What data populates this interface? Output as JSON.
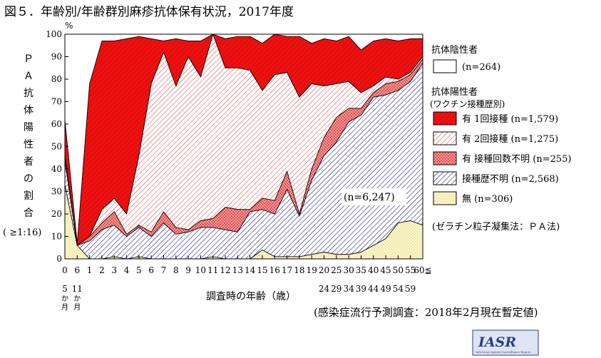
{
  "title": "図５．年齢別/年齢群別麻疹抗体保有状況，2017年度",
  "y_unit": "%",
  "y_axis_label_chars": [
    "Ｐ",
    "Ａ",
    "抗",
    "体",
    "陽",
    "性",
    "者",
    "の",
    "割",
    "合"
  ],
  "y_axis_label_note": "( ≥1:16)",
  "x_axis_title": "調査時の年齢（歳）",
  "sample_size": "(n=6,247)",
  "legend": {
    "negative_header": "抗体陰性者",
    "positive_header": "抗体陽性者",
    "positive_subheader": "(ワクチン接種歴別)",
    "method_note": "(ゼラチン粒子凝集法：ＰＡ法)",
    "items": [
      {
        "key": "negative",
        "label": "(n=264)",
        "color": "#ffffff"
      },
      {
        "key": "dose1",
        "label": "有  1回接種 (n=1,579)",
        "color": "#ee1111"
      },
      {
        "key": "dose2",
        "label": "有  2回接種 (n=1,275)",
        "color": "#ffffff"
      },
      {
        "key": "dose_unknown",
        "label": "有  接種回数不明 (n=255)",
        "color": "#e85555"
      },
      {
        "key": "history_unknown",
        "label": "接種歴不明 (n=2,568)",
        "color": "#3333aa"
      },
      {
        "key": "none",
        "label": "無 (n=306)",
        "color": "#fdf8c8"
      }
    ]
  },
  "source": "(感染症流行予測調査：2018年2月現在暫定値)",
  "logo": {
    "text": "IASR",
    "subtext": "Infectious Agents Surveillance Report"
  },
  "chart_data": {
    "type": "area",
    "stacked": true,
    "ylim": [
      0,
      100
    ],
    "yticks": [
      0,
      10,
      20,
      30,
      40,
      50,
      60,
      70,
      80,
      90,
      100
    ],
    "x_ticks": [
      {
        "top": "0",
        "bottom": "5か月"
      },
      {
        "top": "6",
        "bottom": "11か月"
      },
      {
        "top": "1",
        "bottom": ""
      },
      {
        "top": "2",
        "bottom": ""
      },
      {
        "top": "3",
        "bottom": ""
      },
      {
        "top": "4",
        "bottom": ""
      },
      {
        "top": "5",
        "bottom": ""
      },
      {
        "top": "6",
        "bottom": ""
      },
      {
        "top": "7",
        "bottom": ""
      },
      {
        "top": "8",
        "bottom": ""
      },
      {
        "top": "9",
        "bottom": ""
      },
      {
        "top": "10",
        "bottom": ""
      },
      {
        "top": "11",
        "bottom": ""
      },
      {
        "top": "12",
        "bottom": ""
      },
      {
        "top": "13",
        "bottom": ""
      },
      {
        "top": "14",
        "bottom": ""
      },
      {
        "top": "15",
        "bottom": ""
      },
      {
        "top": "16",
        "bottom": ""
      },
      {
        "top": "17",
        "bottom": ""
      },
      {
        "top": "18",
        "bottom": ""
      },
      {
        "top": "19",
        "bottom": ""
      },
      {
        "top": "20",
        "bottom": "24"
      },
      {
        "top": "25",
        "bottom": "29"
      },
      {
        "top": "30",
        "bottom": "34"
      },
      {
        "top": "35",
        "bottom": "39"
      },
      {
        "top": "40",
        "bottom": "44"
      },
      {
        "top": "45",
        "bottom": "49"
      },
      {
        "top": "50",
        "bottom": "54"
      },
      {
        "top": "55",
        "bottom": "59"
      },
      {
        "top": "60≦",
        "bottom": ""
      }
    ],
    "series": [
      {
        "key": "none",
        "values": [
          33,
          6,
          0,
          0,
          1,
          0,
          1,
          0,
          0,
          0,
          0,
          0,
          1,
          0,
          0,
          0,
          4,
          1,
          1,
          1,
          2,
          3,
          2,
          2,
          3,
          6,
          9,
          16,
          17,
          15
        ]
      },
      {
        "key": "history_unknown",
        "values": [
          11,
          0,
          8,
          13,
          14,
          10,
          13,
          10,
          16,
          11,
          12,
          14,
          13,
          13,
          12,
          21,
          18,
          19,
          30,
          18,
          33,
          43,
          50,
          59,
          61,
          66,
          64,
          59,
          62,
          72
        ]
      },
      {
        "key": "dose_unknown",
        "values": [
          2,
          0,
          2,
          3,
          6,
          1,
          1,
          2,
          5,
          3,
          1,
          3,
          4,
          10,
          10,
          1,
          5,
          6,
          8,
          1,
          5,
          8,
          11,
          6,
          3,
          2,
          5,
          4,
          3,
          2
        ]
      },
      {
        "key": "dose2",
        "values": [
          0,
          0,
          0,
          6,
          6,
          9,
          31,
          66,
          71,
          63,
          77,
          64,
          82,
          62,
          63,
          62,
          48,
          56,
          44,
          52,
          38,
          23,
          15,
          12,
          7,
          3,
          3,
          1,
          1,
          1
        ]
      },
      {
        "key": "dose1",
        "values": [
          16,
          1,
          68,
          75,
          70,
          78,
          53,
          20,
          5,
          21,
          7,
          16,
          3,
          13,
          14,
          15,
          21,
          18,
          16,
          27,
          18,
          21,
          19,
          20,
          19,
          20,
          17,
          17,
          15,
          8
        ]
      },
      {
        "key": "negative",
        "values": [
          38,
          93,
          22,
          3,
          3,
          2,
          1,
          2,
          3,
          2,
          3,
          3,
          0,
          2,
          1,
          1,
          4,
          0,
          1,
          1,
          4,
          2,
          3,
          1,
          7,
          3,
          2,
          3,
          2,
          2
        ]
      }
    ]
  }
}
